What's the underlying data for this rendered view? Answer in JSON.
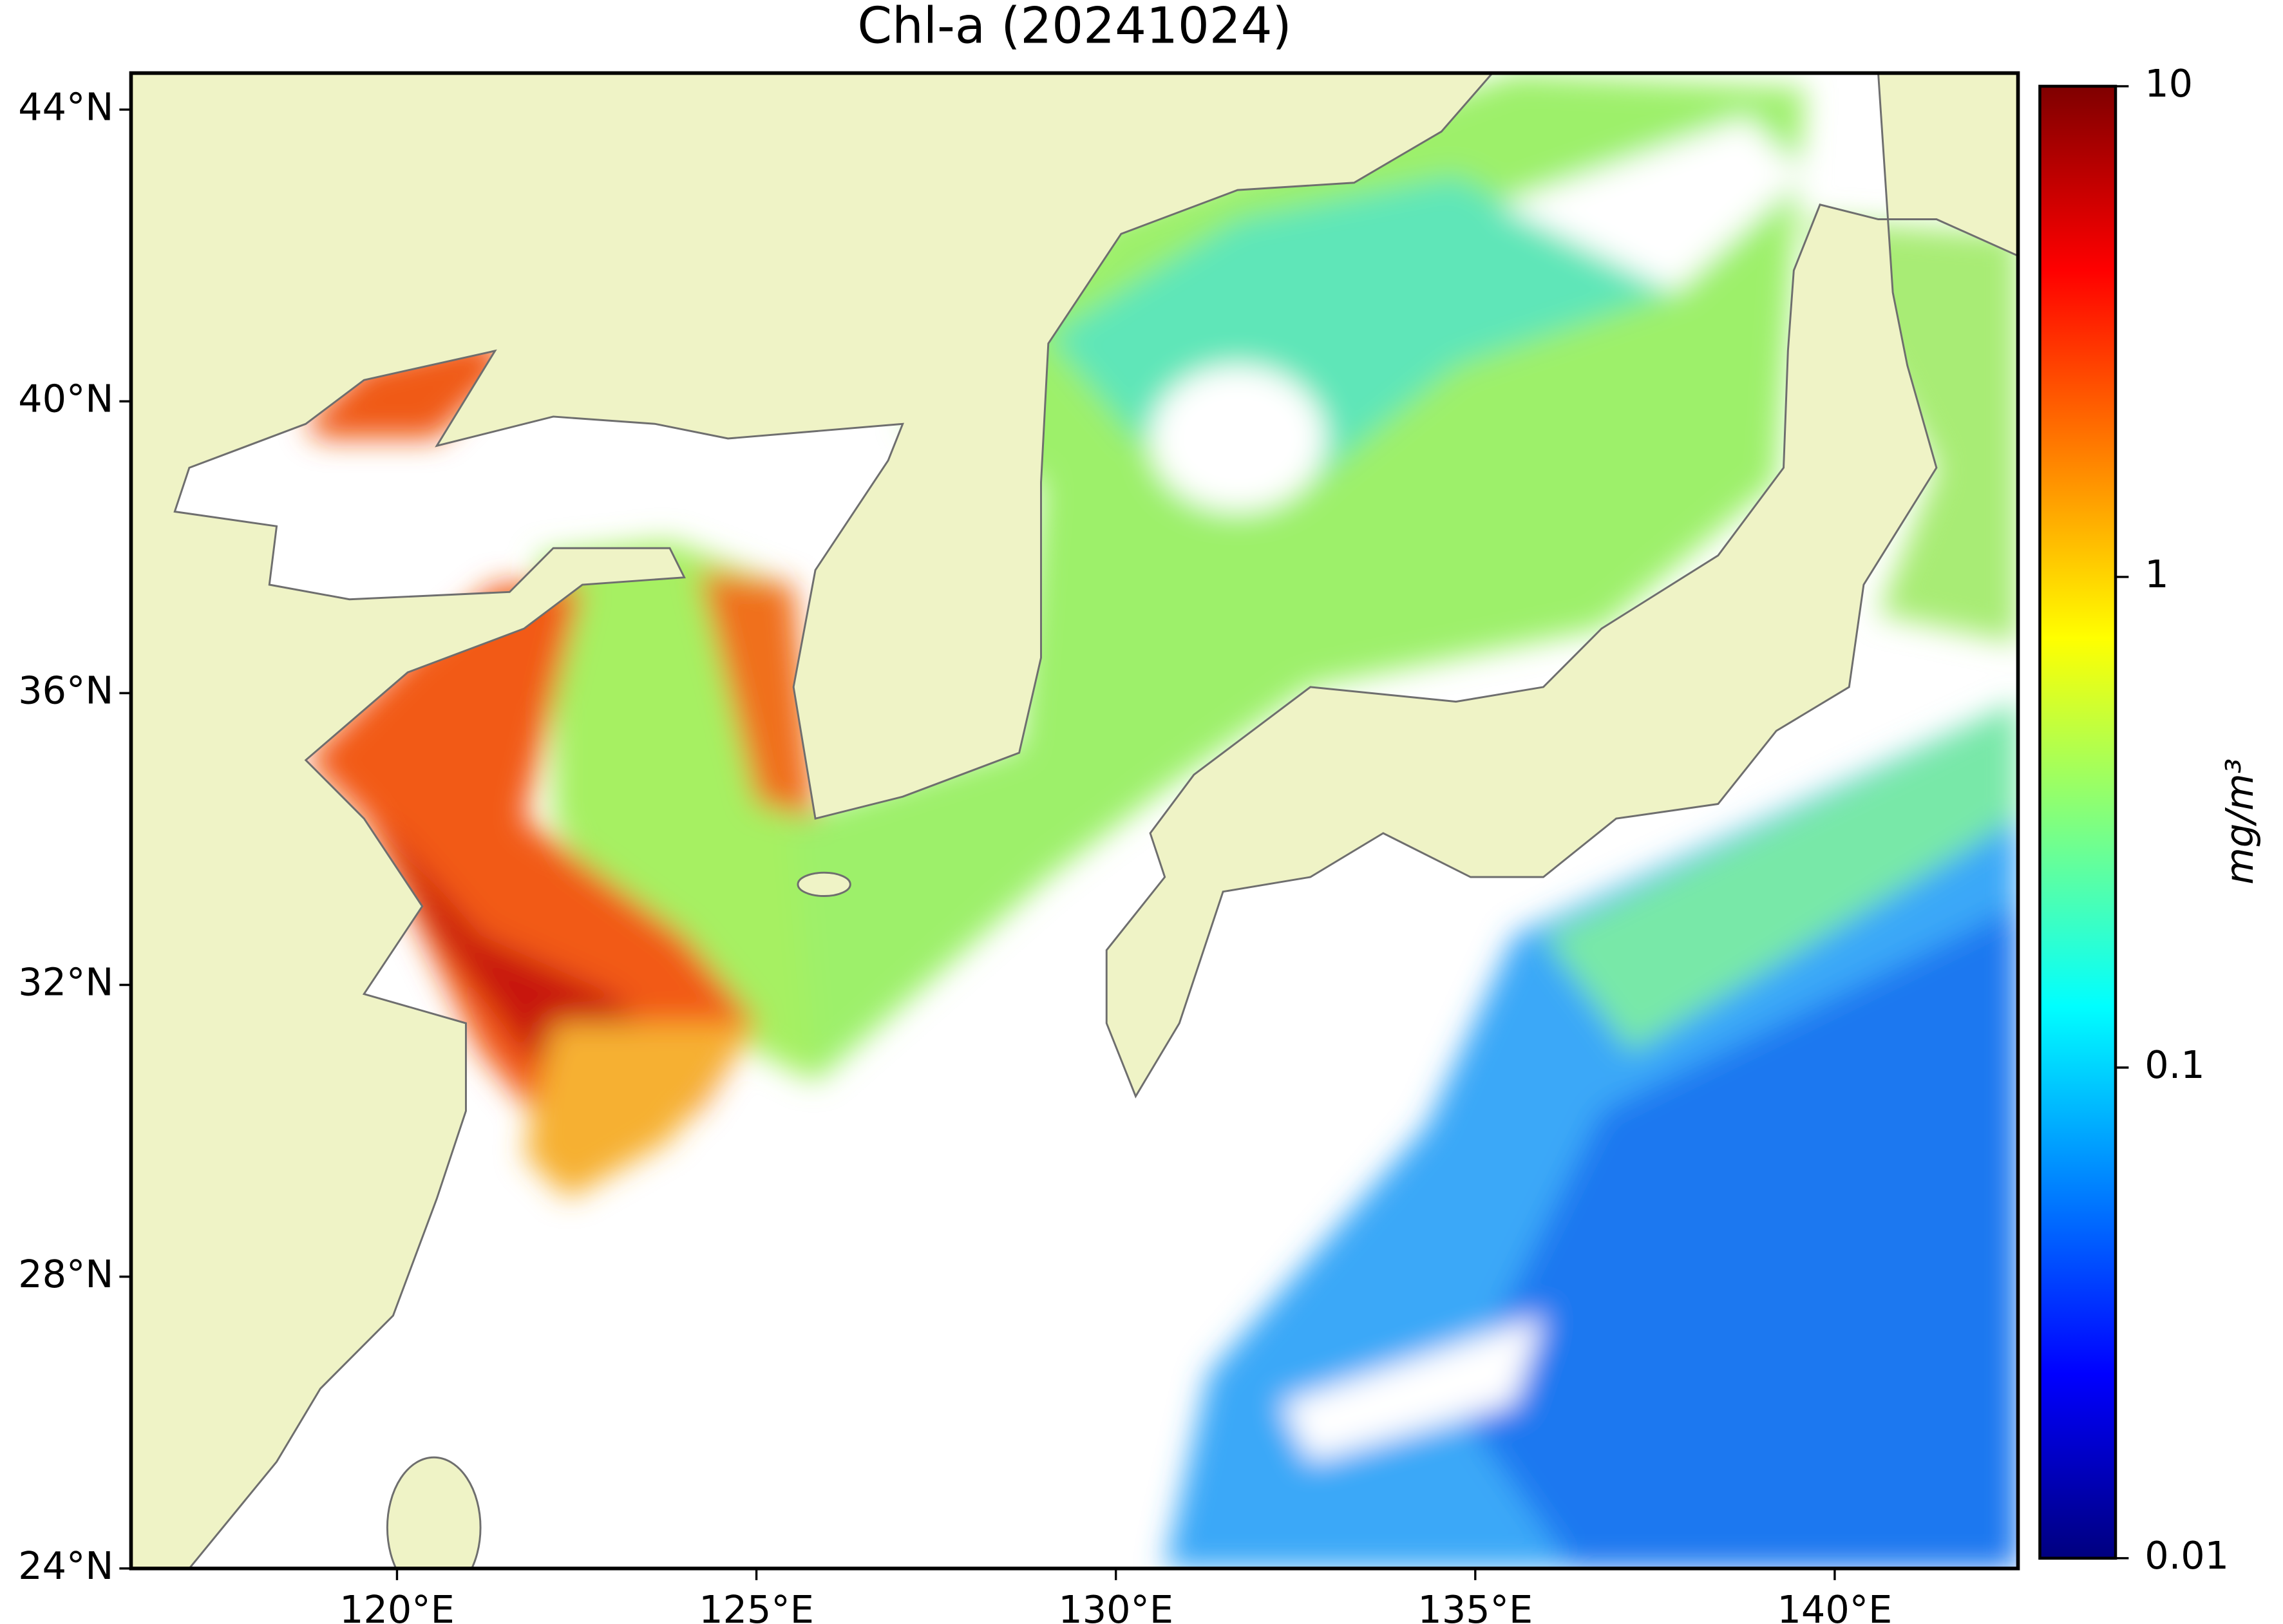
{
  "chart_data": {
    "type": "map",
    "title": "Chl-a (20241024)",
    "xlim": [
      116.3,
      142.55
    ],
    "ylim": [
      24,
      44.5
    ],
    "xticks": [
      {
        "value": 120,
        "label": "120°E"
      },
      {
        "value": 125,
        "label": "125°E"
      },
      {
        "value": 130,
        "label": "130°E"
      },
      {
        "value": 135,
        "label": "135°E"
      },
      {
        "value": 140,
        "label": "140°E"
      }
    ],
    "yticks": [
      {
        "value": 24,
        "label": "24°N"
      },
      {
        "value": 28,
        "label": "28°N"
      },
      {
        "value": 32,
        "label": "32°N"
      },
      {
        "value": 36,
        "label": "36°N"
      },
      {
        "value": 40,
        "label": "40°N"
      },
      {
        "value": 44,
        "label": "44°N"
      }
    ],
    "colorbar": {
      "label": "mg/m³",
      "lim": [
        0.01,
        10
      ],
      "ticks": [
        0.01,
        0.1,
        1,
        10
      ],
      "log": true,
      "colormap": "jet"
    }
  }
}
